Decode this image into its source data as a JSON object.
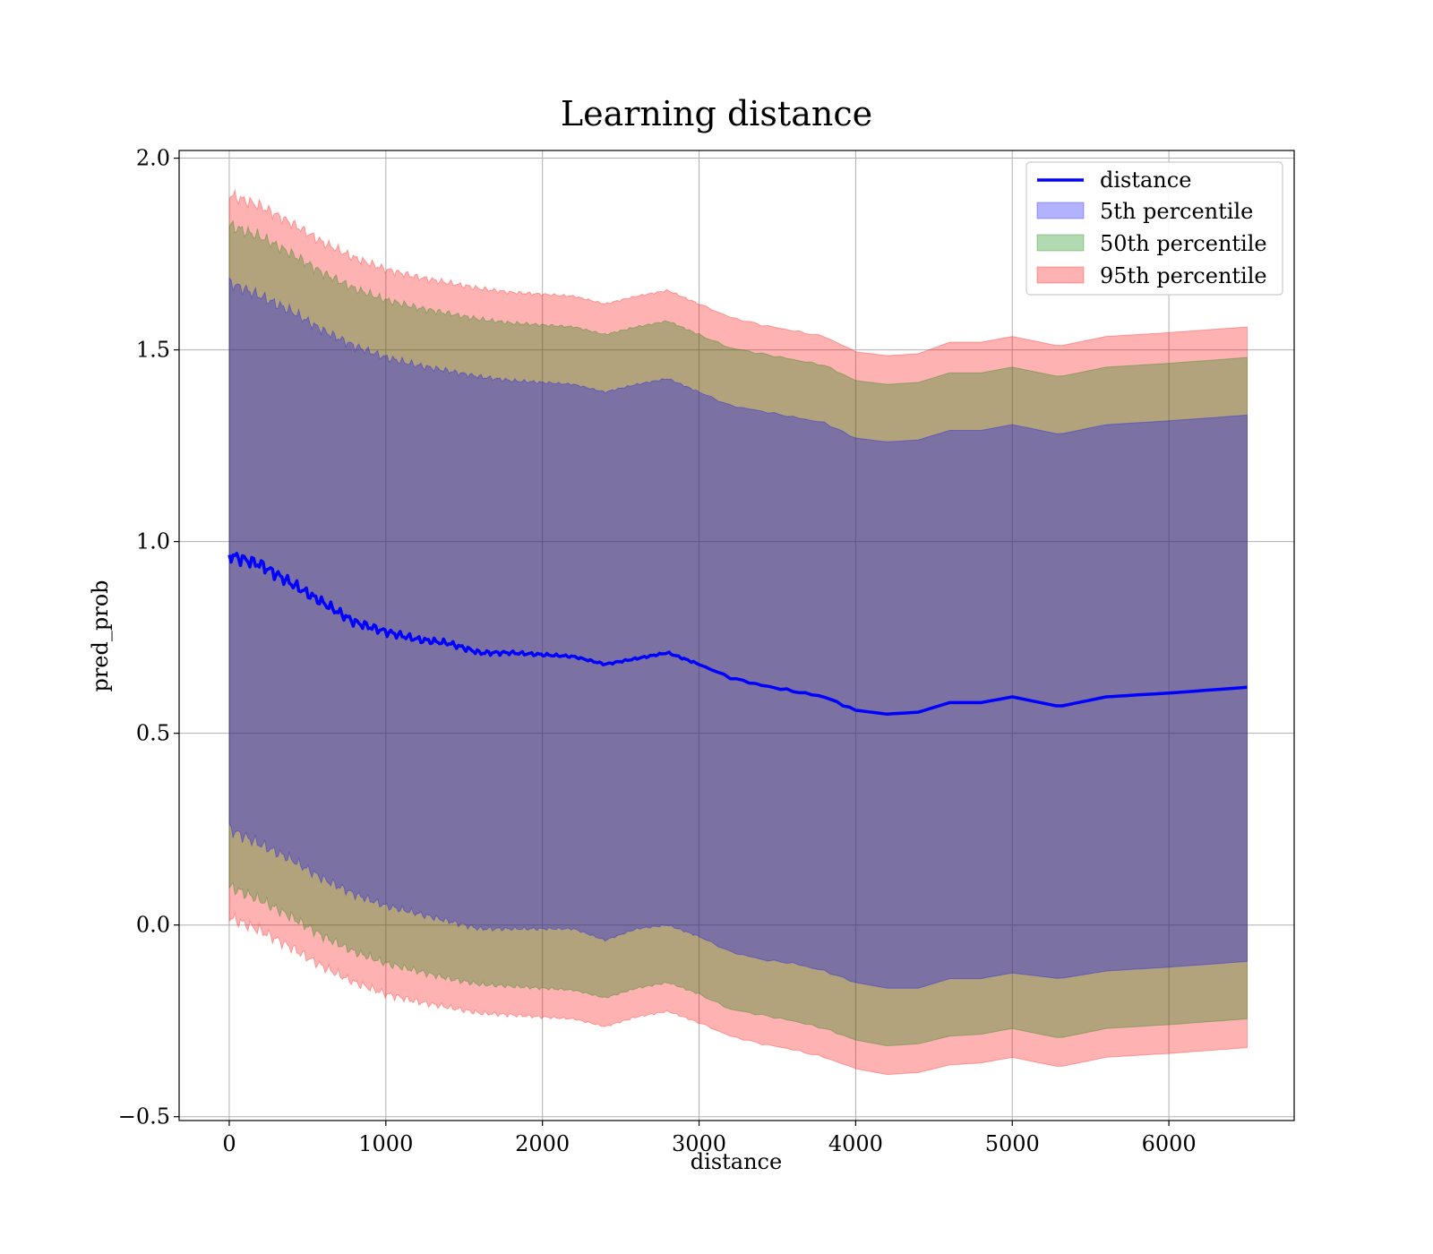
{
  "chart_data": {
    "type": "area",
    "title": "Learning distance",
    "xlabel": "distance",
    "ylabel": "pred_prob",
    "xlim": [
      -320,
      6800
    ],
    "ylim": [
      -0.51,
      2.02
    ],
    "xticks": [
      0,
      1000,
      2000,
      3000,
      4000,
      5000,
      6000
    ],
    "xtick_labels": [
      "0",
      "1000",
      "2000",
      "3000",
      "4000",
      "5000",
      "6000"
    ],
    "yticks": [
      -0.5,
      0.0,
      0.5,
      1.0,
      1.5,
      2.0
    ],
    "ytick_labels": [
      "−0.5",
      "0.0",
      "0.5",
      "1.0",
      "1.5",
      "2.0"
    ],
    "grid": true,
    "legend_position": "top-right",
    "x": [
      0,
      200,
      400,
      600,
      800,
      1000,
      1200,
      1400,
      1600,
      1800,
      2000,
      2200,
      2400,
      2600,
      2800,
      3000,
      3200,
      3400,
      3600,
      3800,
      4000,
      4200,
      4400,
      4600,
      4800,
      5000,
      5300,
      5600,
      6000,
      6500
    ],
    "series": [
      {
        "name": "distance",
        "kind": "line",
        "color": "#0000ff",
        "values": [
          0.965,
          0.94,
          0.89,
          0.84,
          0.79,
          0.765,
          0.745,
          0.735,
          0.71,
          0.71,
          0.705,
          0.7,
          0.68,
          0.695,
          0.71,
          0.68,
          0.645,
          0.625,
          0.61,
          0.595,
          0.56,
          0.55,
          0.555,
          0.58,
          0.58,
          0.595,
          0.57,
          0.595,
          0.605,
          0.62
        ]
      },
      {
        "name": "5th percentile",
        "kind": "band",
        "color": "#0000ff",
        "lower": [
          0.25,
          0.21,
          0.17,
          0.12,
          0.08,
          0.05,
          0.03,
          0.01,
          -0.01,
          -0.01,
          -0.01,
          -0.01,
          -0.04,
          -0.01,
          -0.0,
          -0.03,
          -0.07,
          -0.09,
          -0.1,
          -0.12,
          -0.15,
          -0.165,
          -0.165,
          -0.14,
          -0.14,
          -0.125,
          -0.14,
          -0.12,
          -0.11,
          -0.095
        ],
        "upper": [
          1.675,
          1.64,
          1.6,
          1.55,
          1.51,
          1.48,
          1.46,
          1.445,
          1.43,
          1.42,
          1.415,
          1.41,
          1.39,
          1.41,
          1.425,
          1.39,
          1.355,
          1.34,
          1.325,
          1.31,
          1.27,
          1.26,
          1.265,
          1.29,
          1.29,
          1.305,
          1.28,
          1.305,
          1.315,
          1.33
        ]
      },
      {
        "name": "50th percentile",
        "kind": "band",
        "color": "#008000",
        "lower": [
          0.1,
          0.065,
          0.02,
          -0.03,
          -0.07,
          -0.1,
          -0.12,
          -0.14,
          -0.155,
          -0.16,
          -0.165,
          -0.17,
          -0.19,
          -0.165,
          -0.15,
          -0.18,
          -0.22,
          -0.235,
          -0.25,
          -0.27,
          -0.3,
          -0.315,
          -0.31,
          -0.29,
          -0.285,
          -0.27,
          -0.295,
          -0.27,
          -0.26,
          -0.245
        ],
        "upper": [
          1.825,
          1.795,
          1.75,
          1.7,
          1.66,
          1.63,
          1.61,
          1.595,
          1.58,
          1.57,
          1.565,
          1.56,
          1.54,
          1.56,
          1.575,
          1.54,
          1.505,
          1.49,
          1.475,
          1.46,
          1.42,
          1.41,
          1.415,
          1.44,
          1.44,
          1.455,
          1.43,
          1.455,
          1.465,
          1.48
        ]
      },
      {
        "name": "95th percentile",
        "kind": "band",
        "color": "#ff0000",
        "lower": [
          0.02,
          -0.015,
          -0.06,
          -0.11,
          -0.15,
          -0.18,
          -0.2,
          -0.215,
          -0.23,
          -0.235,
          -0.24,
          -0.245,
          -0.265,
          -0.24,
          -0.225,
          -0.255,
          -0.29,
          -0.31,
          -0.325,
          -0.345,
          -0.375,
          -0.39,
          -0.385,
          -0.365,
          -0.36,
          -0.345,
          -0.37,
          -0.345,
          -0.335,
          -0.32
        ],
        "upper": [
          1.905,
          1.875,
          1.83,
          1.78,
          1.74,
          1.71,
          1.69,
          1.675,
          1.66,
          1.65,
          1.645,
          1.64,
          1.62,
          1.64,
          1.655,
          1.62,
          1.585,
          1.565,
          1.55,
          1.535,
          1.495,
          1.485,
          1.49,
          1.52,
          1.52,
          1.535,
          1.51,
          1.535,
          1.545,
          1.56
        ]
      }
    ]
  }
}
